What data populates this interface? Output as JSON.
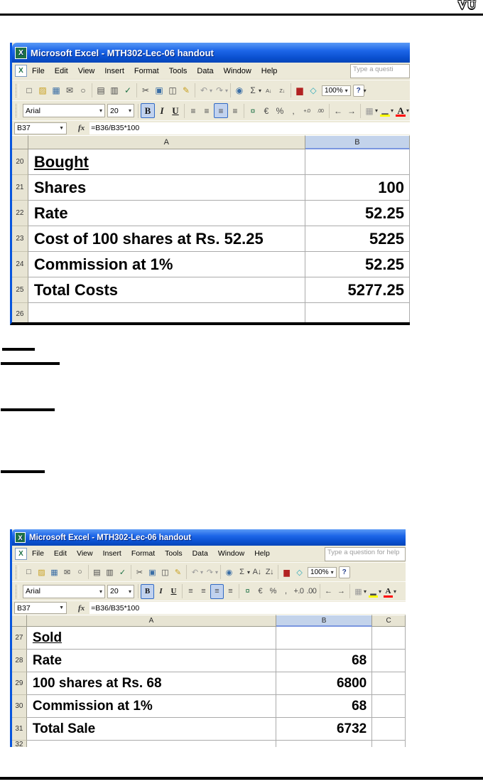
{
  "page": {
    "logo_text": "VU"
  },
  "icons": {
    "excel_app": "X",
    "workbook": "X",
    "new": "□",
    "open": "▨",
    "save": "▦",
    "mail": "✉",
    "search": "○",
    "print": "▤",
    "print_preview": "▥",
    "spelling": "✓",
    "cut": "✂",
    "copy": "▣",
    "paste": "◫",
    "format_painter": "✎",
    "undo": "↶",
    "redo": "↷",
    "hyperlink": "◉",
    "autosum": "Σ",
    "sort_asc": "A↓",
    "sort_desc": "Z↓",
    "chart": "▆",
    "drawing": "◇",
    "help": "?",
    "dropdown": "▾",
    "name_dropdown": "▼",
    "bold": "B",
    "italic": "I",
    "underline": "U",
    "align_left": "≡",
    "align_center": "≡",
    "align_right": "≡",
    "merge_center": "≡",
    "currency": "¤",
    "euro": "€",
    "percent": "%",
    "comma": ",",
    "inc_decimal": "+.0",
    "dec_decimal": ".00",
    "dec_indent": "←",
    "inc_indent": "→",
    "borders": "▦",
    "fill_color": "▂",
    "font_color": "A",
    "fx": "fx"
  },
  "excel1": {
    "title": "Microsoft Excel - MTH302-Lec-06 handout",
    "menu": {
      "file": "File",
      "edit": "Edit",
      "view": "View",
      "insert": "Insert",
      "format": "Format",
      "tools": "Tools",
      "data": "Data",
      "window": "Window",
      "help": "Help"
    },
    "ask_box": "Type a questi",
    "font_name": "Arial",
    "font_size": "20",
    "zoom": "100%",
    "name_box": "B37",
    "formula": "=B36/B35*100",
    "col_a": "A",
    "col_b": "B",
    "rows": [
      {
        "n": "20",
        "a": "Bought",
        "b": ""
      },
      {
        "n": "21",
        "a": "Shares",
        "b": "100"
      },
      {
        "n": "22",
        "a": "Rate",
        "b": "52.25"
      },
      {
        "n": "23",
        "a": "Cost of 100 shares at Rs. 52.25",
        "b": "5225"
      },
      {
        "n": "24",
        "a": "Commission at 1%",
        "b": "52.25"
      },
      {
        "n": "25",
        "a": "Total Costs",
        "b": "5277.25"
      },
      {
        "n": "26",
        "a": "",
        "b": ""
      }
    ]
  },
  "excel2": {
    "title": "Microsoft Excel - MTH302-Lec-06 handout",
    "menu": {
      "file": "File",
      "edit": "Edit",
      "view": "View",
      "insert": "Insert",
      "format": "Format",
      "tools": "Tools",
      "data": "Data",
      "window": "Window",
      "help": "Help"
    },
    "ask_box": "Type a question for help",
    "font_name": "Arial",
    "font_size": "20",
    "zoom": "100%",
    "name_box": "B37",
    "formula": "=B36/B35*100",
    "col_a": "A",
    "col_b": "B",
    "col_c": "C",
    "rows": [
      {
        "n": "27",
        "a": "Sold",
        "b": ""
      },
      {
        "n": "28",
        "a": "Rate",
        "b": "68"
      },
      {
        "n": "29",
        "a": "100 shares at Rs. 68",
        "b": "6800"
      },
      {
        "n": "30",
        "a": "Commission at 1%",
        "b": "68"
      },
      {
        "n": "31",
        "a": "Total Sale",
        "b": "6732"
      },
      {
        "n": "32",
        "a": "",
        "b": ""
      }
    ]
  },
  "colors": {
    "titlebar_blue": "#0A50D0",
    "toolbar_tan": "#ECE9D8",
    "selected_header_blue": "#C3D3EB",
    "fill_yellow": "#FFFF00",
    "font_red": "#FF0000"
  }
}
